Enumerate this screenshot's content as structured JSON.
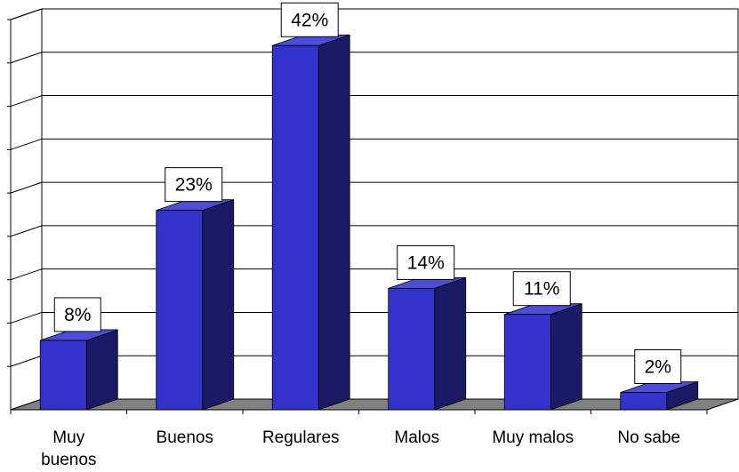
{
  "chart_data": {
    "type": "bar",
    "style": "3d-column",
    "categories": [
      "Muy buenos",
      "Buenos",
      "Regulares",
      "Malos",
      "Muy malos",
      "No sabe"
    ],
    "category_lines": [
      [
        "Muy",
        "buenos"
      ],
      [
        "Buenos"
      ],
      [
        "Regulares"
      ],
      [
        "Malos"
      ],
      [
        "Muy malos"
      ],
      [
        "No sabe"
      ]
    ],
    "values": [
      8,
      23,
      42,
      14,
      11,
      2
    ],
    "data_labels": [
      "8%",
      "23%",
      "42%",
      "14%",
      "11%",
      "2%"
    ],
    "ylim": [
      0,
      45
    ],
    "grid": true,
    "legend": "none",
    "colors": {
      "bar_front": "#3333cc",
      "bar_side": "#1a1a66",
      "bar_top": "#4d4dd9",
      "floor": "#808080",
      "wall": "#ffffff",
      "grid": "#000000"
    }
  }
}
